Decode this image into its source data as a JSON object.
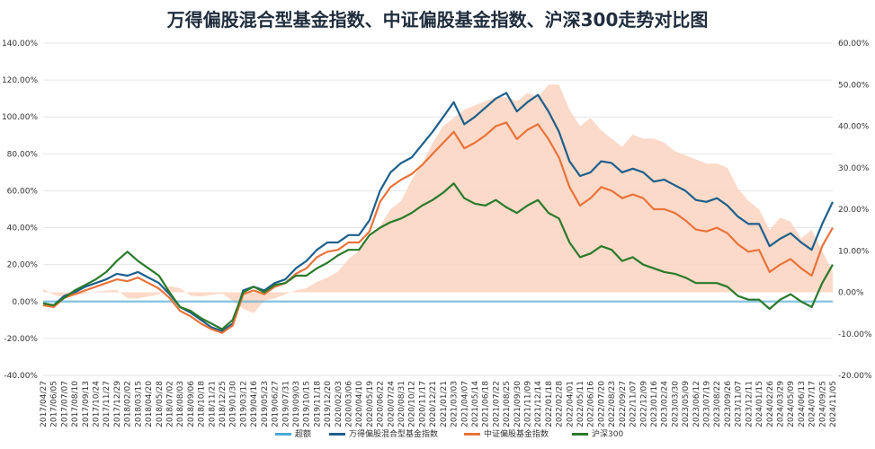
{
  "chart_data": {
    "type": "line",
    "title": "万得偏股混合型基金指数、中证偏股基金指数、沪深300走势对比图",
    "y_left": {
      "min": -40,
      "max": 140,
      "step": 20,
      "suffix": "%",
      "ticks": [
        "-40.00%",
        "-20.00%",
        "0.00%",
        "20.00%",
        "40.00%",
        "60.00%",
        "80.00%",
        "100.00%",
        "120.00%",
        "140.00%"
      ]
    },
    "y_right": {
      "min": -20,
      "max": 60,
      "step": 10,
      "suffix": "%",
      "ticks": [
        "-20.00%",
        "-10.00%",
        "0.00%",
        "10.00%",
        "20.00%",
        "30.00%",
        "40.00%",
        "50.00%",
        "60.00%"
      ]
    },
    "x_tick_labels": [
      "2017/04/27",
      "2017/06/05",
      "2017/07/07",
      "2017/08/10",
      "2017/09/13",
      "2017/10/24",
      "2017/11/27",
      "2017/12/29",
      "2018/02/02",
      "2018/03/15",
      "2018/04/20",
      "2018/05/28",
      "2018/07/02",
      "2018/08/03",
      "2018/09/06",
      "2018/10/18",
      "2018/11/21",
      "2018/12/25",
      "2019/01/30",
      "2019/03/12",
      "2019/04/16",
      "2019/05/23",
      "2019/06/27",
      "2019/07/31",
      "2019/09/03",
      "2019/10/15",
      "2019/11/18",
      "2019/12/20",
      "2020/02/03",
      "2020/03/06",
      "2020/04/10",
      "2020/05/19",
      "2020/06/22",
      "2020/07/24",
      "2020/08/31",
      "2020/10/12",
      "2020/11/17",
      "2020/12/21",
      "2021/01/21",
      "2021/03/03",
      "2021/04/07",
      "2021/05/14",
      "2021/06/18",
      "2021/07/22",
      "2021/08/25",
      "2021/09/30",
      "2021/11/09",
      "2021/12/14",
      "2022/01/18",
      "2022/02/28",
      "2022/04/01",
      "2022/05/11",
      "2022/06/16",
      "2022/07/20",
      "2022/08/23",
      "2022/09/27",
      "2022/11/07",
      "2022/12/09",
      "2023/01/16",
      "2023/02/24",
      "2023/03/30",
      "2023/05/09",
      "2023/06/12",
      "2023/07/19",
      "2023/08/22",
      "2023/09/26",
      "2023/11/07",
      "2023/12/11",
      "2024/01/15",
      "2024/02/26",
      "2024/03/29",
      "2024/05/09",
      "2024/06/13",
      "2024/07/17",
      "2024/09/25",
      "2024/11/05"
    ],
    "grid": true,
    "legend_position": "bottom",
    "series": [
      {
        "name": "超额",
        "axis": "right",
        "style": "area",
        "color": "#fbd3c0",
        "legend_color": "#4aa9d6",
        "values": [
          0.8,
          -0.6,
          -1.2,
          -0.8,
          -0.3,
          0.2,
          0.4,
          0.6,
          -1.5,
          -1.5,
          -1.0,
          -0.5,
          1.5,
          1.0,
          -0.8,
          -1.0,
          -0.6,
          -0.3,
          -2.0,
          -4.0,
          -5.0,
          -2.0,
          -1.5,
          -0.5,
          0.5,
          1.0,
          2.5,
          3.5,
          5.0,
          8.0,
          10.0,
          13.0,
          16.0,
          20.0,
          22.0,
          27.0,
          31.0,
          36.0,
          40.0,
          42.0,
          44.0,
          45.0,
          46.0,
          47.0,
          47.0,
          46.0,
          48.0,
          47.0,
          50.0,
          50.0,
          44.0,
          40.0,
          42.0,
          39.0,
          37.0,
          35.0,
          38.0,
          37.0,
          37.0,
          36.0,
          34.0,
          33.0,
          32.0,
          31.0,
          31.0,
          30.0,
          25.0,
          22.0,
          20.0,
          15.0,
          18.0,
          17.0,
          13.0,
          15.0,
          10.0,
          5.0
        ]
      },
      {
        "name": "万得偏股混合型基金指数",
        "axis": "left",
        "style": "line",
        "color": "#1d5f8c",
        "values": [
          -1,
          -2,
          3,
          5,
          8,
          10,
          12,
          15,
          14,
          16,
          13,
          10,
          4,
          -3,
          -6,
          -10,
          -14,
          -16,
          -12,
          6,
          8,
          6,
          10,
          12,
          18,
          22,
          28,
          32,
          32,
          36,
          36,
          44,
          60,
          70,
          75,
          78,
          85,
          92,
          100,
          108,
          96,
          100,
          105,
          110,
          113,
          103,
          108,
          112,
          103,
          92,
          76,
          68,
          70,
          76,
          75,
          70,
          72,
          70,
          65,
          66,
          63,
          60,
          55,
          54,
          56,
          52,
          46,
          42,
          42,
          30,
          34,
          37,
          32,
          28,
          42,
          54
        ]
      },
      {
        "name": "中证偏股基金指数",
        "axis": "left",
        "style": "line",
        "color": "#e8733a",
        "values": [
          -2,
          -3,
          2,
          4,
          6,
          8,
          10,
          12,
          11,
          13,
          10,
          7,
          2,
          -5,
          -8,
          -12,
          -15,
          -17,
          -13,
          4,
          6,
          4,
          8,
          10,
          15,
          18,
          24,
          27,
          28,
          32,
          32,
          38,
          54,
          62,
          66,
          69,
          74,
          80,
          86,
          92,
          83,
          86,
          90,
          95,
          97,
          88,
          93,
          96,
          88,
          78,
          62,
          52,
          56,
          62,
          60,
          56,
          58,
          56,
          50,
          50,
          48,
          44,
          39,
          38,
          40,
          37,
          31,
          27,
          28,
          16,
          20,
          23,
          18,
          14,
          30,
          40
        ]
      },
      {
        "name": "沪深300",
        "axis": "left",
        "style": "line",
        "color": "#2a7a2a",
        "values": [
          -1,
          -2,
          2,
          6,
          9,
          12,
          16,
          22,
          27,
          22,
          18,
          14,
          5,
          -3,
          -5,
          -9,
          -12,
          -15,
          -10,
          5,
          8,
          5,
          9,
          10,
          14,
          14,
          18,
          21,
          25,
          28,
          28,
          36,
          40,
          43,
          45,
          48,
          52,
          55,
          59,
          64,
          56,
          53,
          52,
          55,
          51,
          48,
          52,
          55,
          48,
          45,
          32,
          24,
          26,
          30,
          28,
          22,
          24,
          20,
          18,
          16,
          15,
          13,
          10,
          10,
          10,
          8,
          3,
          1,
          1,
          -4,
          1,
          4,
          0,
          -3,
          10,
          20
        ]
      }
    ]
  }
}
